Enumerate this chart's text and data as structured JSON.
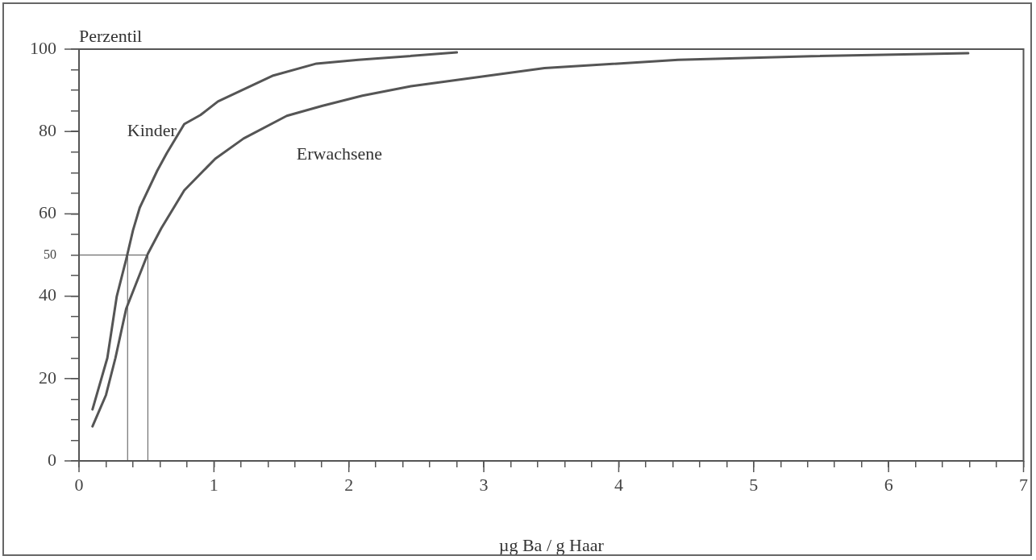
{
  "chart_data": {
    "type": "line",
    "ylabel": "Perzentil",
    "xlabel": "µg Ba / g Haar",
    "series": [
      {
        "name": "Kinder",
        "color": "#555555",
        "x": [
          0.1,
          0.21,
          0.28,
          0.35,
          0.4,
          0.45,
          0.58,
          0.65,
          0.78,
          0.9,
          1.03,
          1.44,
          1.76,
          2.07,
          2.4,
          2.8
        ],
        "values": [
          12.5,
          25,
          40,
          49,
          56,
          61.5,
          70.5,
          74.7,
          81.8,
          84,
          87.3,
          93.6,
          96.5,
          97.4,
          98.2,
          99.2
        ]
      },
      {
        "name": "Erwachsene",
        "color": "#555555",
        "x": [
          0.1,
          0.2,
          0.27,
          0.35,
          0.51,
          0.61,
          0.78,
          1.01,
          1.22,
          1.54,
          1.8,
          2.1,
          2.46,
          3.45,
          4.44,
          5.43,
          6.59
        ],
        "values": [
          8.4,
          16,
          25,
          37,
          50.3,
          56.5,
          65.7,
          73.4,
          78.3,
          83.8,
          86.2,
          88.7,
          91,
          95.4,
          97.4,
          98.3,
          99.0
        ]
      },
      {
        "color": "#555555",
        "x": [
          0,
          0.36,
          0.51
        ],
        "values": [
          50,
          50,
          50
        ]
      },
      {
        "color": "#555555",
        "x": [
          0.36,
          0.36
        ],
        "values": [
          0,
          50
        ]
      },
      {
        "color": "#555555",
        "x": [
          0.51,
          0.51
        ],
        "values": [
          0,
          50
        ]
      }
    ],
    "xlim": [
      0,
      7
    ],
    "ylim": [
      0,
      100
    ],
    "xticks": [
      0,
      {
        "value": 0.2,
        "label": null
      },
      {
        "value": 0.4,
        "label": null
      },
      {
        "value": 0.6,
        "label": null
      },
      {
        "value": 0.8,
        "label": null
      },
      1,
      {
        "value": 1.2,
        "label": null
      },
      {
        "value": 1.4,
        "label": null
      },
      {
        "value": 1.6,
        "label": null
      },
      {
        "value": 1.8,
        "label": null
      },
      2,
      {
        "value": 2.2,
        "label": null
      },
      {
        "value": 2.4,
        "label": null
      },
      {
        "value": 2.6,
        "label": null
      },
      {
        "value": 2.8,
        "label": null
      },
      3,
      {
        "value": 3.2,
        "label": null
      },
      {
        "value": 3.4,
        "label": null
      },
      {
        "value": 3.6,
        "label": null
      },
      {
        "value": 3.8,
        "label": null
      },
      4,
      {
        "value": 4.2,
        "label": null
      },
      {
        "value": 4.4,
        "label": null
      },
      {
        "value": 4.6,
        "label": null
      },
      {
        "value": 4.8,
        "label": null
      },
      5,
      {
        "value": 5.2,
        "label": null
      },
      {
        "value": 5.4,
        "label": null
      },
      {
        "value": 5.6,
        "label": null
      },
      {
        "value": 5.8,
        "label": null
      },
      6,
      {
        "value": 6.2,
        "label": null
      },
      {
        "value": 6.4,
        "label": null
      },
      {
        "value": 6.6,
        "label": null
      },
      {
        "value": 6.8,
        "label": null
      },
      7
    ],
    "yticks": [
      0,
      {
        "value": 5,
        "label": null
      },
      {
        "value": 10,
        "label": null
      },
      {
        "value": 15,
        "label": null
      },
      20,
      {
        "value": 25,
        "label": null
      },
      {
        "value": 30,
        "label": null
      },
      {
        "value": 35,
        "label": null
      },
      40,
      {
        "value": 45,
        "label": null
      },
      {
        "value": 50,
        "label": "50"
      },
      {
        "value": 55,
        "label": null
      },
      60,
      {
        "value": 65,
        "label": null
      },
      {
        "value": 70,
        "label": null
      },
      {
        "value": 75,
        "label": null
      },
      80,
      {
        "value": 85,
        "label": null
      },
      {
        "value": 90,
        "label": null
      },
      {
        "value": 95,
        "label": null
      },
      100
    ],
    "grid": false,
    "legend": false,
    "marker": "none",
    "line_style": "solid"
  }
}
